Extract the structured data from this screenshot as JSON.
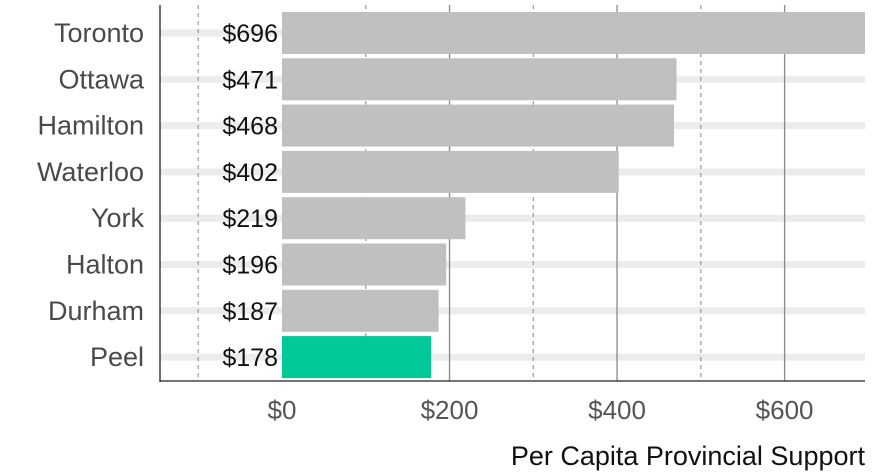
{
  "chart_data": {
    "type": "bar",
    "orientation": "horizontal",
    "categories": [
      "Toronto",
      "Ottawa",
      "Hamilton",
      "Waterloo",
      "York",
      "Halton",
      "Durham",
      "Peel"
    ],
    "values": [
      696,
      471,
      468,
      402,
      219,
      196,
      187,
      178
    ],
    "value_labels": [
      "$696",
      "$471",
      "$468",
      "$402",
      "$219",
      "$196",
      "$187",
      "$178"
    ],
    "highlight_category": "Peel",
    "xlabel": "Per Capita Provincial Support",
    "ylabel": "",
    "xlim": [
      -146,
      696
    ],
    "x_ticks": [
      0,
      200,
      400,
      600
    ],
    "x_tick_labels": [
      "$0",
      "$200",
      "$400",
      "$600"
    ],
    "x_minor_ticks": [
      -100,
      100,
      300,
      500
    ],
    "grid": true,
    "colors": {
      "bar": "#c0c0c0",
      "highlight": "#00c896",
      "band": "#ececec",
      "major_grid": "#888888",
      "minor_grid": "#999999",
      "axis": "#222222"
    }
  }
}
